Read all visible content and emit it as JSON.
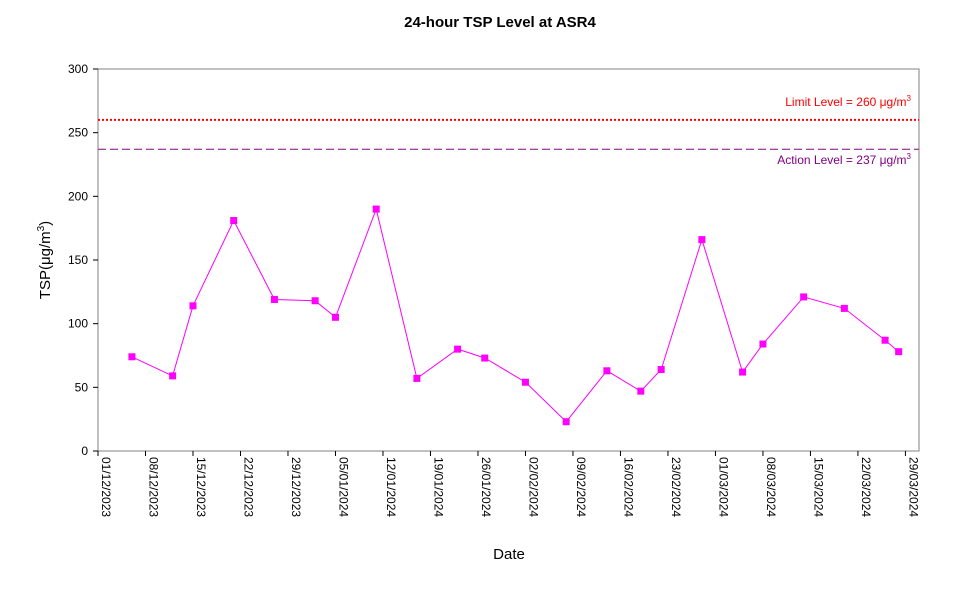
{
  "chart_data": {
    "type": "line",
    "title": "24-hour TSP Level at ASR4",
    "xlabel": "Date",
    "ylabel": "TSP(μg/m",
    "ylabel_sup": "3",
    "ylim": [
      0,
      300
    ],
    "yticks": [
      0,
      50,
      100,
      150,
      200,
      250,
      300
    ],
    "xlim": [
      "2023-12-01",
      "2024-03-31"
    ],
    "xticks": [
      "01/12/2023",
      "08/12/2023",
      "15/12/2023",
      "22/12/2023",
      "29/12/2023",
      "05/01/2024",
      "12/01/2024",
      "19/01/2024",
      "26/01/2024",
      "02/02/2024",
      "09/02/2024",
      "16/02/2024",
      "23/02/2024",
      "01/03/2024",
      "08/03/2024",
      "15/03/2024",
      "22/03/2024",
      "29/03/2024"
    ],
    "grid": false,
    "series": [
      {
        "color": "#ff00ff",
        "points": [
          {
            "date": "2023-12-06",
            "value": 74
          },
          {
            "date": "2023-12-12",
            "value": 59
          },
          {
            "date": "2023-12-15",
            "value": 114
          },
          {
            "date": "2023-12-21",
            "value": 181
          },
          {
            "date": "2023-12-27",
            "value": 119
          },
          {
            "date": "2024-01-02",
            "value": 118
          },
          {
            "date": "2024-01-05",
            "value": 105
          },
          {
            "date": "2024-01-11",
            "value": 190
          },
          {
            "date": "2024-01-17",
            "value": 57
          },
          {
            "date": "2024-01-23",
            "value": 80
          },
          {
            "date": "2024-01-27",
            "value": 73
          },
          {
            "date": "2024-02-02",
            "value": 54
          },
          {
            "date": "2024-02-08",
            "value": 23
          },
          {
            "date": "2024-02-14",
            "value": 63
          },
          {
            "date": "2024-02-19",
            "value": 47
          },
          {
            "date": "2024-02-22",
            "value": 64
          },
          {
            "date": "2024-02-28",
            "value": 166
          },
          {
            "date": "2024-03-05",
            "value": 62
          },
          {
            "date": "2024-03-08",
            "value": 84
          },
          {
            "date": "2024-03-14",
            "value": 121
          },
          {
            "date": "2024-03-20",
            "value": 112
          },
          {
            "date": "2024-03-26",
            "value": 87
          },
          {
            "date": "2024-03-28",
            "value": 78
          }
        ]
      }
    ],
    "reference_lines": [
      {
        "label": "Limit Level  = 260 μg/m",
        "sup": "3",
        "value": 260,
        "color": "#ff0000",
        "style": "dotted"
      },
      {
        "label": "Action Level  = 237 μg/m",
        "sup": "3",
        "value": 237,
        "color": "#800080",
        "style": "dashed"
      }
    ]
  }
}
